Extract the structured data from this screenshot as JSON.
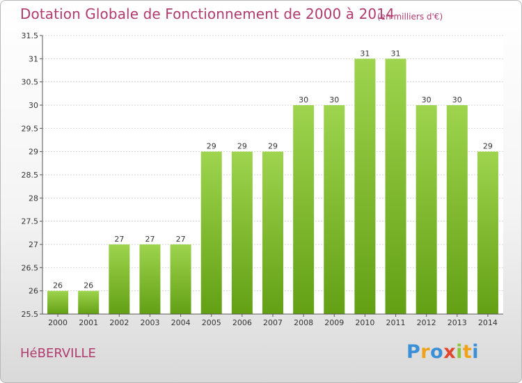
{
  "chart_data": {
    "type": "bar",
    "title": "Dotation Globale de Fonctionnement de 2000 à 2014",
    "subtitle": "(en milliers d'€)",
    "categories": [
      "2000",
      "2001",
      "2002",
      "2003",
      "2004",
      "2005",
      "2006",
      "2007",
      "2008",
      "2009",
      "2010",
      "2011",
      "2012",
      "2013",
      "2014"
    ],
    "values": [
      26,
      26,
      27,
      27,
      27,
      29,
      29,
      29,
      30,
      30,
      31,
      31,
      30,
      30,
      29
    ],
    "data_labels": [
      "26",
      "26",
      "27",
      "27",
      "27",
      "29",
      "29",
      "29",
      "30",
      "30",
      "31",
      "31",
      "30",
      "30",
      "29"
    ],
    "ylim": [
      25.5,
      31.5
    ],
    "yticks": [
      25.5,
      26,
      26.5,
      27,
      27.5,
      28,
      28.5,
      29,
      29.5,
      30,
      30.5,
      31,
      31.5
    ],
    "ytick_labels": [
      "25.5",
      "26",
      "26.5",
      "27",
      "27.5",
      "28",
      "28.5",
      "29",
      "29.5",
      "30",
      "30.5",
      "31",
      "31.5"
    ],
    "grid": true,
    "bar_color": "#7fbe2e",
    "xlabel": "",
    "ylabel": ""
  },
  "footer": {
    "commune": "HéBERVILLE"
  },
  "logo": {
    "letters": [
      "P",
      "r",
      "o",
      "x",
      "i",
      "t",
      "i"
    ],
    "colors": [
      "#3a8fd6",
      "#f0a21a",
      "#3a8fd6",
      "#e2462f",
      "#8cc63f",
      "#f0a21a",
      "#3a8fd6"
    ]
  }
}
